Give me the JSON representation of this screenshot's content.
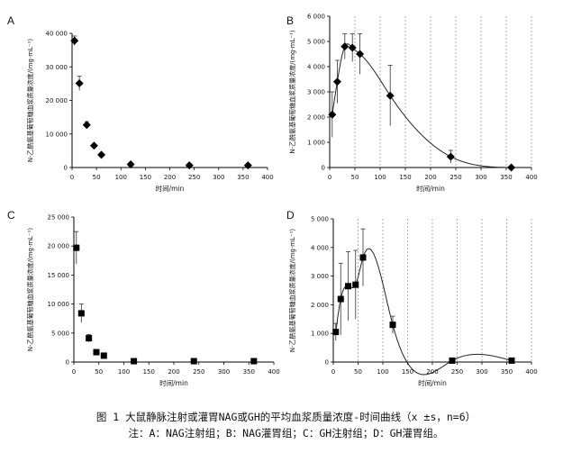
{
  "chart_data": [
    {
      "panel": "A",
      "type": "scatter",
      "xlabel": "时间/min",
      "ylabel": "N-乙酰氨基葡萄糖血浆质量浓度/(mg·mL⁻¹)",
      "xlim": [
        0,
        400
      ],
      "ylim": [
        0,
        40000
      ],
      "xticks": [
        0,
        50,
        100,
        150,
        200,
        250,
        300,
        350,
        400
      ],
      "yticks": [
        0,
        10000,
        20000,
        30000,
        40000
      ],
      "yticklabels": [
        "0",
        "10 000",
        "20 000",
        "30 000",
        "40 000"
      ],
      "marker": "diamond",
      "curve": false,
      "gridlines": false,
      "x": [
        5,
        15,
        30,
        45,
        60,
        120,
        240,
        360
      ],
      "y": [
        37800,
        25100,
        12700,
        6500,
        3800,
        950,
        650,
        650
      ],
      "err": [
        1400,
        2100,
        1000,
        0,
        0,
        0,
        0,
        0
      ]
    },
    {
      "panel": "B",
      "type": "line",
      "xlabel": "时间/min",
      "ylabel": "N-乙酰氨基葡萄糖血浆质量浓度/(mg·mL⁻¹)",
      "xlim": [
        0,
        400
      ],
      "ylim": [
        0,
        6000
      ],
      "xticks": [
        0,
        50,
        100,
        150,
        200,
        250,
        300,
        350,
        400
      ],
      "yticks": [
        0,
        1000,
        2000,
        3000,
        4000,
        5000,
        6000
      ],
      "yticklabels": [
        "0",
        "1 000",
        "2 000",
        "3 000",
        "4 000",
        "5 000",
        "6 000"
      ],
      "marker": "diamond",
      "curve": true,
      "gridlines": true,
      "x": [
        5,
        15,
        30,
        45,
        60,
        120,
        240,
        360
      ],
      "y": [
        2100,
        3400,
        4800,
        4750,
        4500,
        2850,
        430,
        0
      ],
      "err": [
        900,
        850,
        500,
        550,
        800,
        1200,
        250,
        0
      ]
    },
    {
      "panel": "C",
      "type": "scatter",
      "xlabel": "时间/min",
      "ylabel": "N-乙酰氨基葡萄糖血浆质量浓度/(mg·mL⁻¹)",
      "xlim": [
        0,
        400
      ],
      "ylim": [
        0,
        25000
      ],
      "xticks": [
        0,
        50,
        100,
        150,
        200,
        250,
        300,
        350,
        400
      ],
      "yticks": [
        0,
        5000,
        10000,
        15000,
        20000,
        25000
      ],
      "yticklabels": [
        "0",
        "5 000",
        "10 000",
        "15 000",
        "20 000",
        "25 000"
      ],
      "marker": "square",
      "curve": false,
      "gridlines": false,
      "x": [
        5,
        15,
        30,
        45,
        60,
        120,
        240,
        360
      ],
      "y": [
        19700,
        8400,
        4100,
        1700,
        1100,
        150,
        150,
        150
      ],
      "err": [
        2800,
        1600,
        650,
        0,
        0,
        0,
        0,
        0
      ]
    },
    {
      "panel": "D",
      "type": "line",
      "xlabel": "时间/min",
      "ylabel": "N-乙酰氨基葡萄糖血浆质量浓度/(mg·mL⁻¹)",
      "xlim": [
        0,
        400
      ],
      "ylim": [
        0,
        5000
      ],
      "xticks": [
        0,
        50,
        100,
        150,
        200,
        250,
        300,
        350,
        400
      ],
      "yticks": [
        0,
        1000,
        2000,
        3000,
        4000,
        5000
      ],
      "yticklabels": [
        "0",
        "1 000",
        "2 000",
        "3 000",
        "4 000",
        "5 000"
      ],
      "marker": "square",
      "curve": true,
      "gridlines": true,
      "x": [
        5,
        15,
        30,
        45,
        60,
        120,
        240,
        360
      ],
      "y": [
        1050,
        2200,
        2650,
        2700,
        3650,
        1300,
        50,
        50
      ],
      "err": [
        300,
        1250,
        1200,
        1200,
        1000,
        300,
        0,
        0
      ]
    }
  ],
  "caption": {
    "line1": "图 1  大鼠静脉注射或灌胃NAG或GH的平均血浆质量浓度-时间曲线（x ±s，n=6）",
    "line2": "注：A：NAG注射组；B：NAG灌胃组；C：GH注射组；D：GH灌胃组。"
  }
}
